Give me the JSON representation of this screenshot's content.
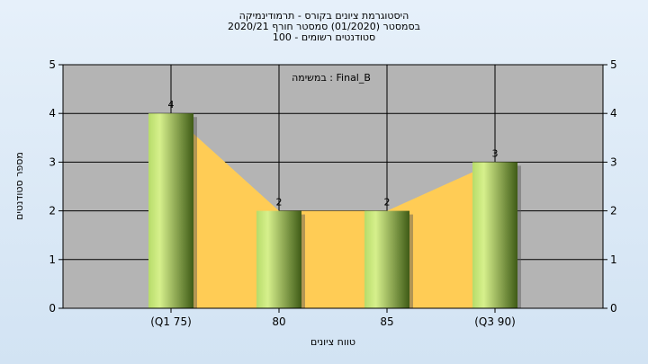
{
  "chart_data": {
    "type": "bar",
    "title_lines": [
      "היסטוגרמת ציונים בקורס - תרמודינמיקה",
      "בסמסטר  (01/2020)  סמסטר חורף 2020/21",
      "סטודנטים רשומים - 100"
    ],
    "annotation": "במשימה : Final_B",
    "categories": [
      "(Q1 75)",
      "80",
      "85",
      "(Q3 90)"
    ],
    "values": [
      4,
      2,
      2,
      3
    ],
    "data_labels": [
      "4",
      "2",
      "2",
      "3"
    ],
    "xlabel": "טווח ציונים",
    "ylabel": "מספר סטודנטים",
    "ylim": [
      0,
      5
    ],
    "yticks": [
      "0",
      "1",
      "2",
      "3",
      "4",
      "5"
    ],
    "grid": true,
    "area_fill_color": "#ffcc55",
    "bar_colors": {
      "light": "#c8e67a",
      "dark": "#3f5b16"
    },
    "plot_background": "#b4b4b4"
  }
}
